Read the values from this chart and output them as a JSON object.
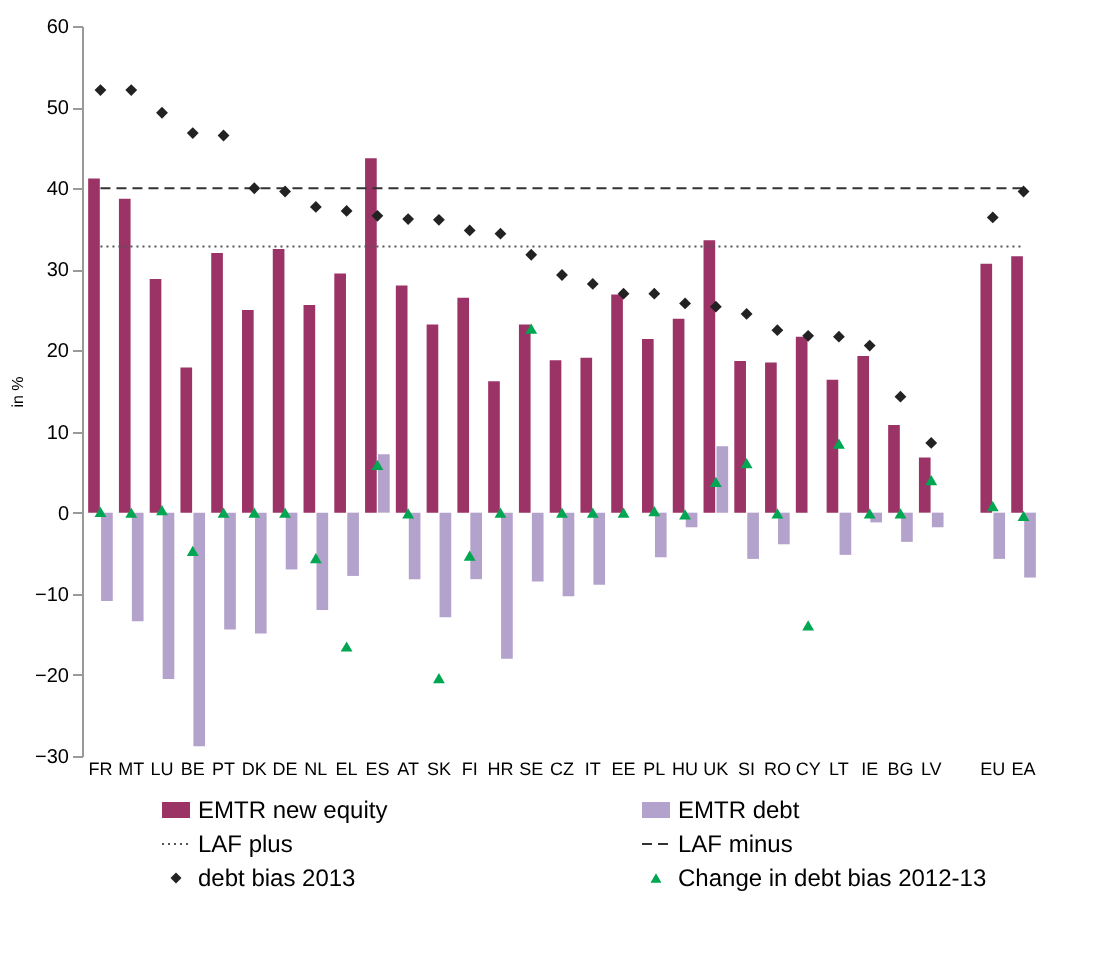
{
  "chart_data": {
    "type": "bar",
    "ylabel": "in %",
    "categories": [
      "FR",
      "MT",
      "LU",
      "BE",
      "PT",
      "DK",
      "DE",
      "NL",
      "EL",
      "ES",
      "AT",
      "SK",
      "FI",
      "HR",
      "SE",
      "CZ",
      "IT",
      "EE",
      "PL",
      "HU",
      "UK",
      "SI",
      "RO",
      "CY",
      "LT",
      "IE",
      "BG",
      "LV",
      null,
      "EU",
      "EA"
    ],
    "ylim": [
      -30,
      60
    ],
    "yticks": [
      -30,
      -20,
      -10,
      0,
      10,
      20,
      30,
      40,
      50,
      60
    ],
    "legend": "bottom",
    "series": [
      {
        "name": "EMTR new equity",
        "color": "#9b3366",
        "values": [
          41.2,
          38.7,
          28.8,
          17.9,
          32,
          25,
          32.5,
          25.6,
          29.5,
          43.7,
          28,
          23.2,
          26.5,
          16.2,
          23.2,
          18.8,
          19.1,
          26.9,
          21.4,
          23.9,
          33.6,
          18.7,
          18.5,
          21.7,
          16.4,
          19.3,
          10.8,
          6.8,
          null,
          30.7,
          31.6
        ]
      },
      {
        "name": "EMTR debt",
        "color": "#b3a2cb",
        "values": [
          -10.9,
          -13.4,
          -20.5,
          -28.8,
          -14.4,
          -14.9,
          -7,
          -12,
          -7.8,
          7.2,
          -8.2,
          -12.9,
          -8.2,
          -18,
          -8.5,
          -10.3,
          -8.9,
          null,
          -5.5,
          -1.8,
          8.2,
          -5.7,
          -3.9,
          null,
          -5.2,
          -1.2,
          -3.6,
          -1.8,
          null,
          -5.7,
          -8
        ]
      },
      {
        "name": "LAF plus",
        "type": "line",
        "line_style": "dotted",
        "color": "#555555",
        "values": [
          32.8,
          32.8,
          32.8,
          32.8,
          32.8,
          32.8,
          32.8,
          32.8,
          32.8,
          32.8,
          32.8,
          32.8,
          32.8,
          32.8,
          32.8,
          32.8,
          32.8,
          32.8,
          32.8,
          32.8,
          32.8,
          32.8,
          32.8,
          32.8,
          32.8,
          32.8,
          32.8,
          32.8,
          32.8,
          32.8,
          32.8
        ]
      },
      {
        "name": "LAF minus",
        "type": "line",
        "line_style": "dashed",
        "color": "#333333",
        "values": [
          40,
          40,
          40,
          40,
          40,
          40,
          40,
          40,
          40,
          40,
          40,
          40,
          40,
          40,
          40,
          40,
          40,
          40,
          40,
          40,
          40,
          40,
          40,
          40,
          40,
          40,
          40,
          40,
          40,
          40,
          40
        ]
      },
      {
        "name": "debt bias 2013",
        "type": "scatter",
        "marker": "diamond",
        "color": "#222222",
        "values": [
          52.1,
          52.1,
          49.3,
          46.8,
          46.5,
          40,
          39.6,
          37.7,
          37.2,
          36.6,
          36.2,
          36.1,
          34.8,
          34.4,
          31.8,
          29.3,
          28.2,
          27,
          27,
          25.8,
          25.4,
          24.5,
          22.5,
          21.8,
          21.7,
          20.6,
          14.3,
          8.6,
          null,
          36.4,
          39.6
        ]
      },
      {
        "name": "Change in debt bias 2012-13",
        "type": "scatter",
        "marker": "triangle",
        "color": "#00a651",
        "values": [
          0.1,
          0,
          0.3,
          -4.7,
          0,
          0,
          0,
          -5.6,
          -16.5,
          5.9,
          -0.1,
          -20.4,
          -5.3,
          0,
          22.7,
          0,
          0,
          0,
          0.2,
          -0.2,
          3.8,
          6.1,
          -0.1,
          -13.9,
          8.5,
          -0.1,
          -0.1,
          4,
          null,
          0.8,
          -0.4
        ]
      }
    ]
  }
}
